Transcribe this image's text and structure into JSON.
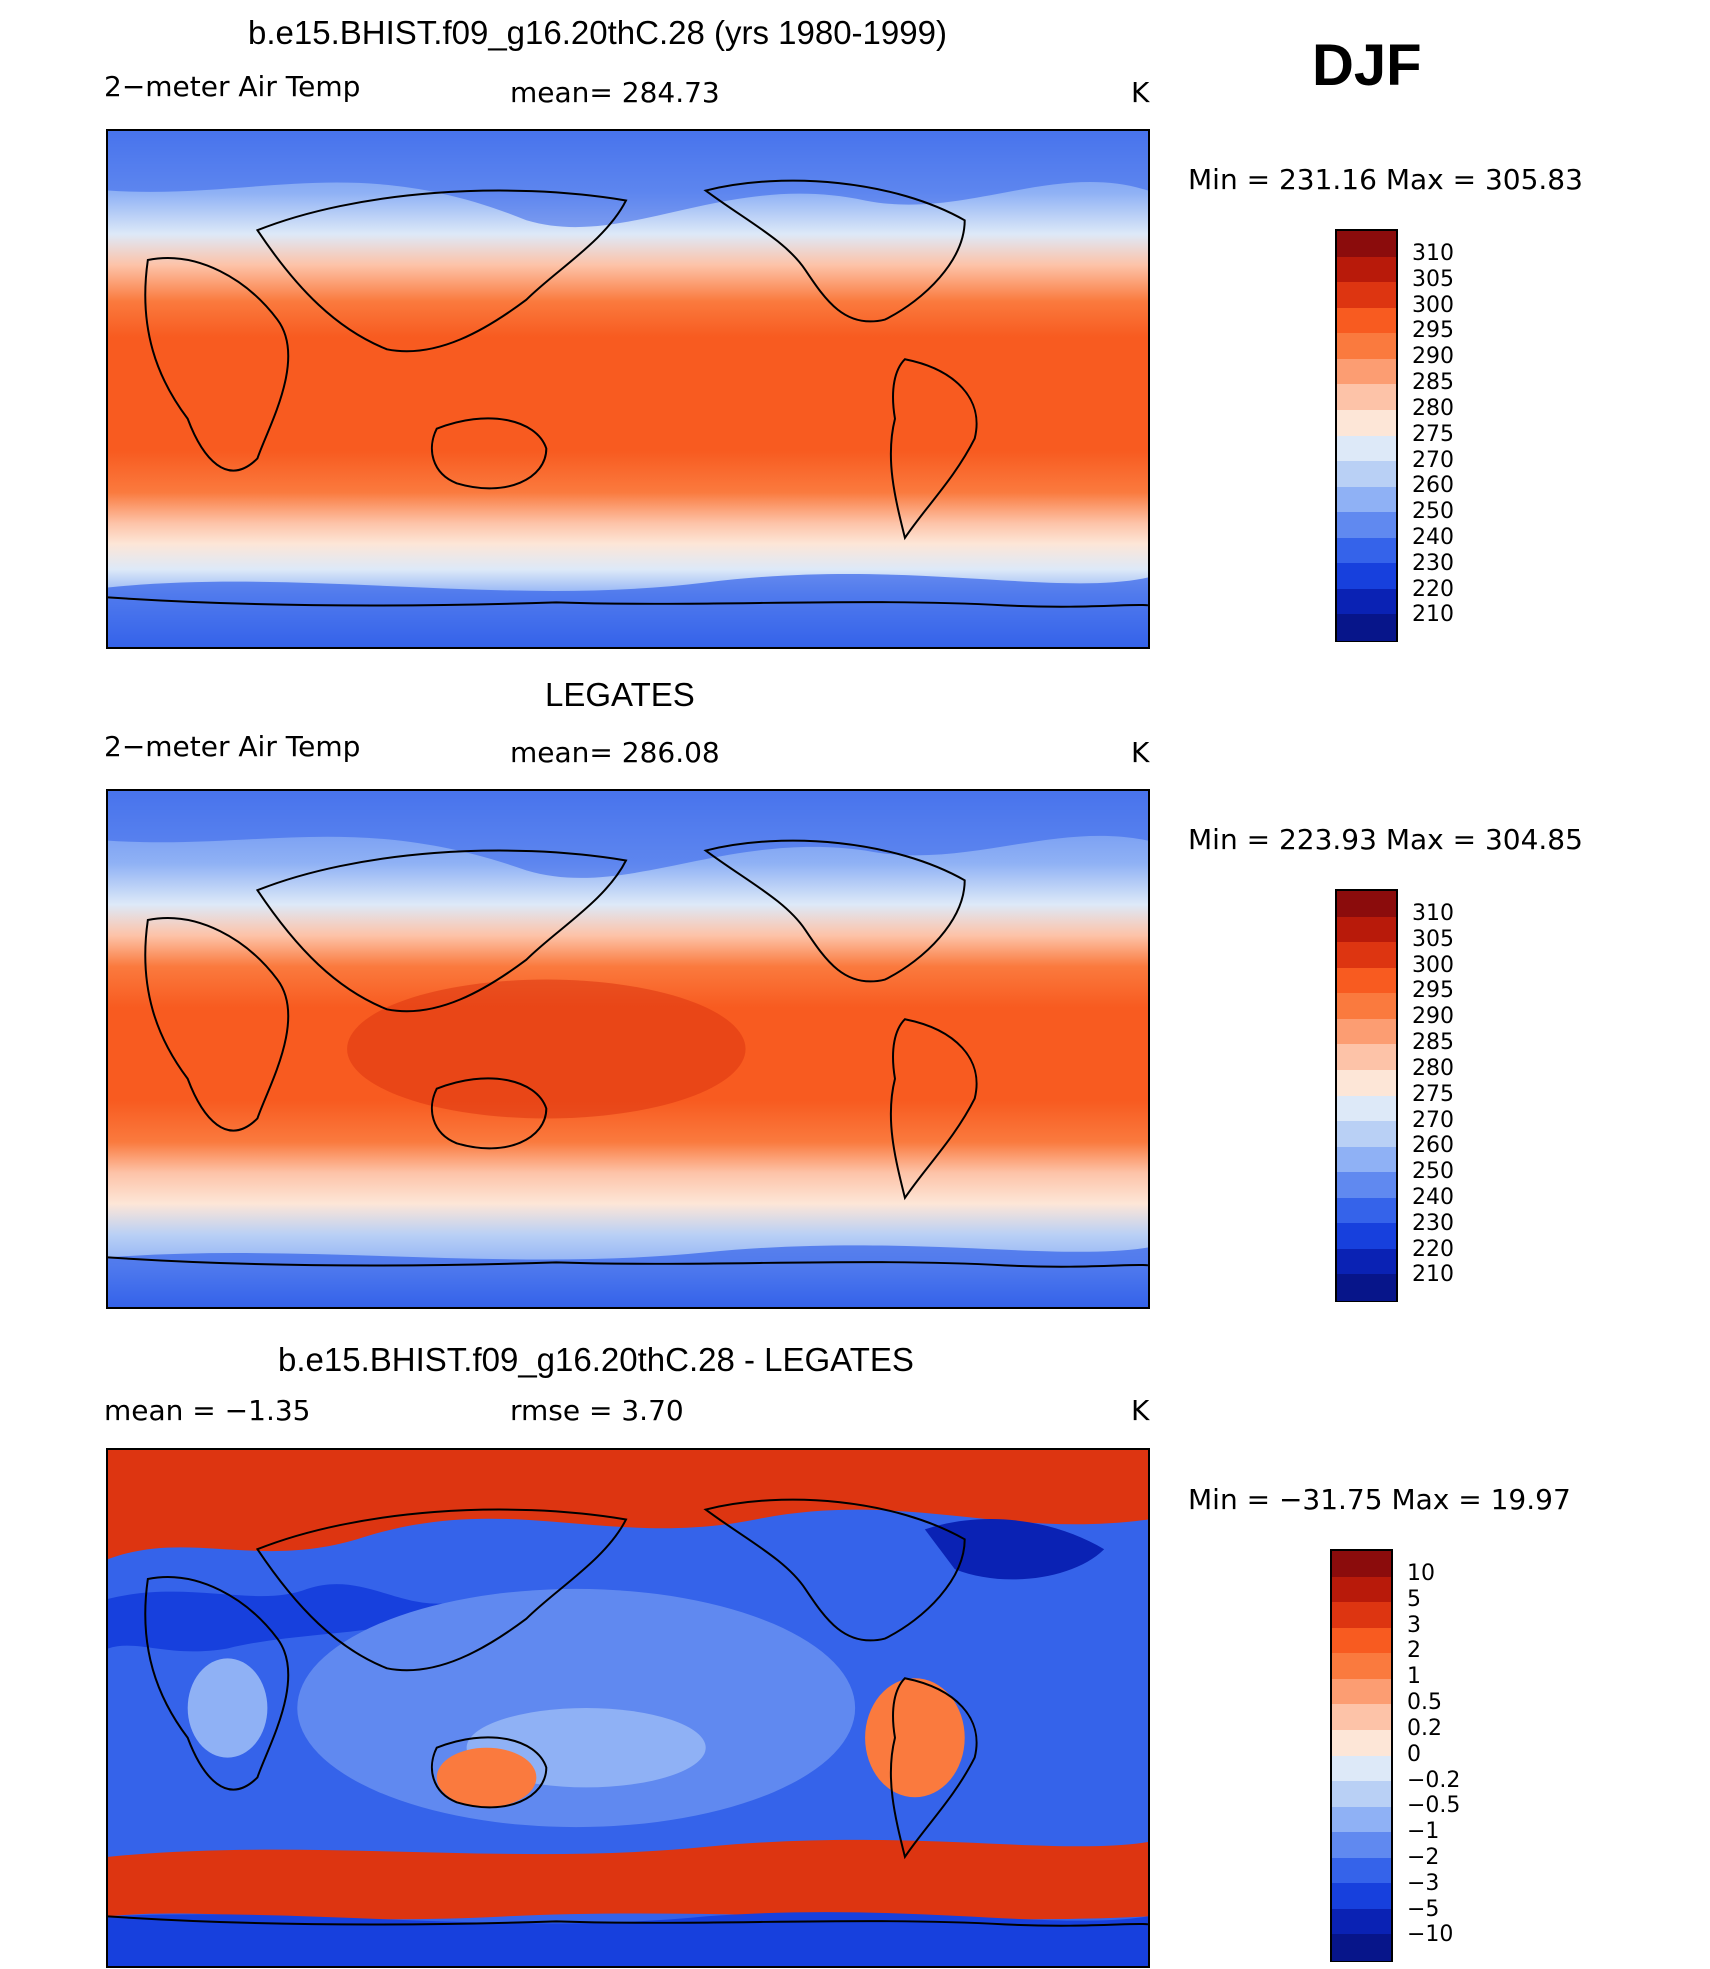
{
  "season": "DJF",
  "panels": [
    {
      "title": "b.e15.BHIST.f09_g16.20thC.28 (yrs 1980-1999)",
      "variable": "2−meter Air Temp",
      "stat_left": "mean=  284.73",
      "units": "K",
      "minmax": "Min  =  231.16  Max  =  305.83",
      "levels": [
        "310",
        "305",
        "300",
        "295",
        "290",
        "285",
        "280",
        "275",
        "270",
        "260",
        "250",
        "240",
        "230",
        "220",
        "210"
      ]
    },
    {
      "title": "LEGATES",
      "variable": "2−meter Air Temp",
      "stat_left": "mean=  286.08",
      "units": "K",
      "minmax": "Min  =  223.93  Max  =  304.85",
      "levels": [
        "310",
        "305",
        "300",
        "295",
        "290",
        "285",
        "280",
        "275",
        "270",
        "260",
        "250",
        "240",
        "230",
        "220",
        "210"
      ]
    },
    {
      "title": "b.e15.BHIST.f09_g16.20thC.28 - LEGATES",
      "stat_mean": "mean  =   −1.35",
      "stat_rmse": "rmse  =    3.70",
      "units": "K",
      "minmax": "Min  =  −31.75  Max  =   19.97",
      "levels": [
        "10",
        "5",
        "3",
        "2",
        "1",
        "0.5",
        "0.2",
        "0",
        "−0.2",
        "−0.5",
        "−1",
        "−2",
        "−3",
        "−5",
        "−10"
      ]
    }
  ],
  "colors": {
    "temp_bar": [
      "#8b0c0c",
      "#b81a0a",
      "#dd3511",
      "#f85b20",
      "#fa7a3e",
      "#fc9d72",
      "#fdc3a8",
      "#fde6d7",
      "#dde9f8",
      "#b9d0f5",
      "#8fb1f5",
      "#6089f0",
      "#3563ea",
      "#1740dd",
      "#0a22b4",
      "#07158a"
    ],
    "diff_bar": [
      "#8b0c0c",
      "#b81a0a",
      "#dd3511",
      "#f85b20",
      "#fa7a3e",
      "#fc9d72",
      "#fdc3a8",
      "#fde6d7",
      "#dde9f8",
      "#b9d0f5",
      "#8fb1f5",
      "#6089f0",
      "#3563ea",
      "#1740dd",
      "#0a22b4",
      "#07158a"
    ]
  }
}
